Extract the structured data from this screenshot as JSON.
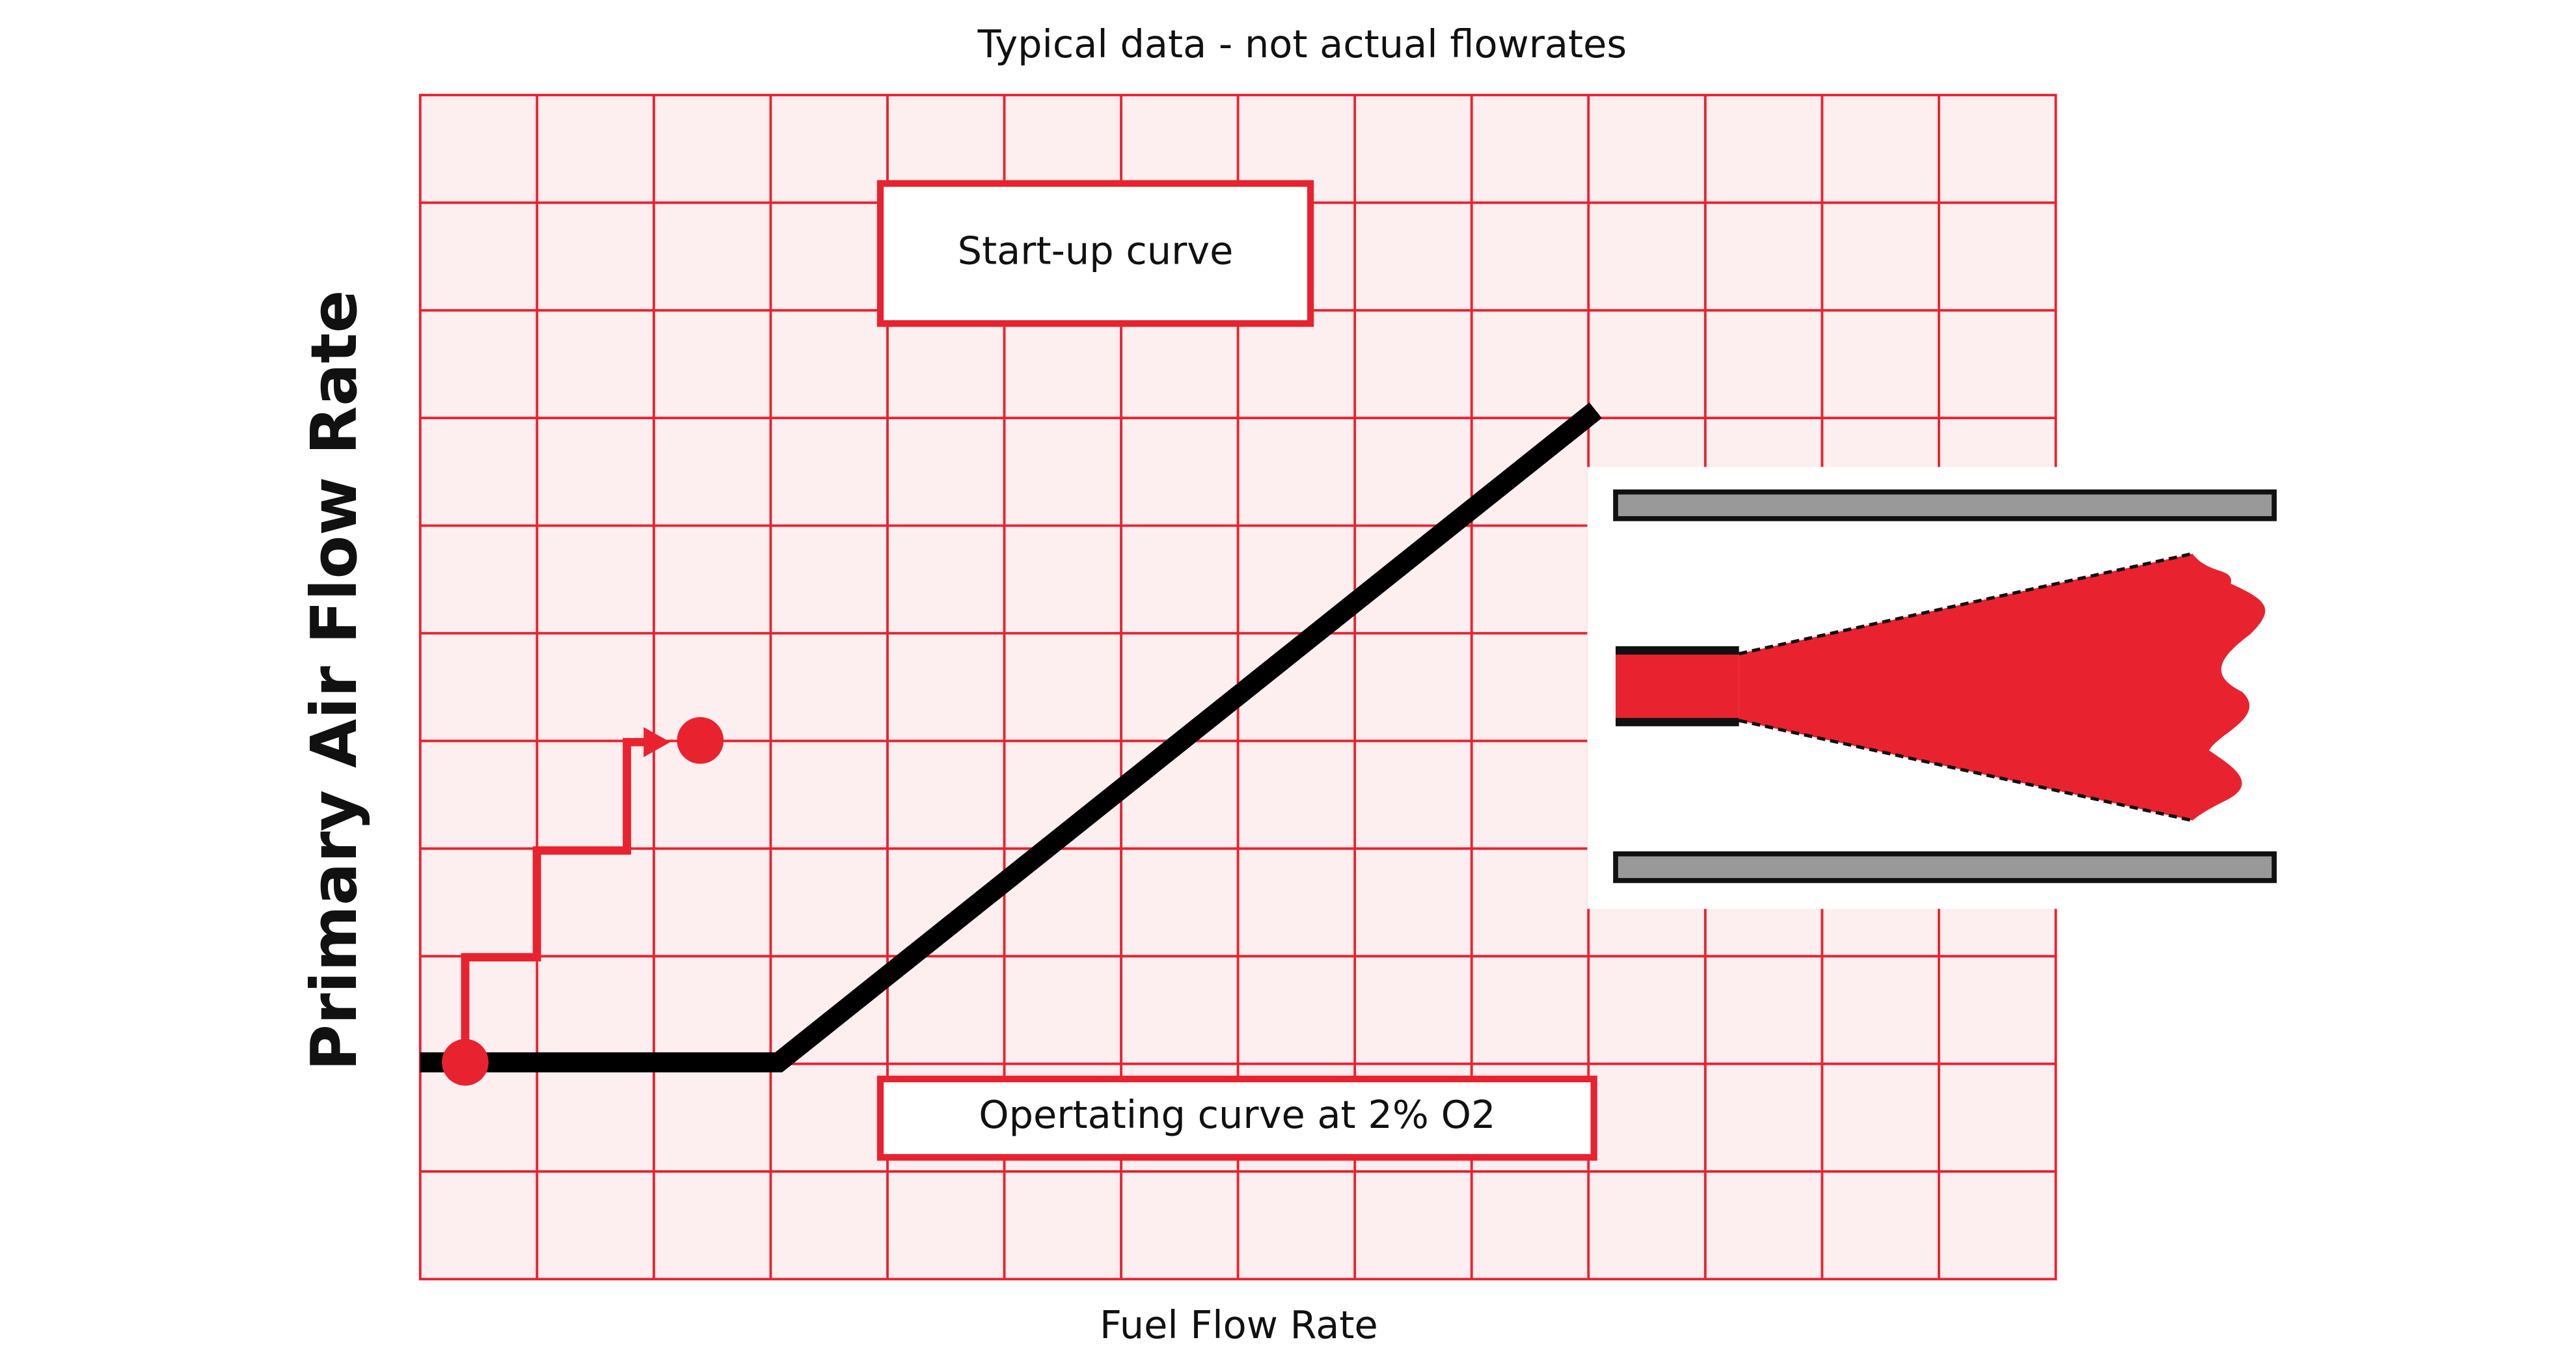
{
  "title": "Typical data - not actual flowrates",
  "x_axis_label": "Fuel Flow Rate",
  "y_axis_label": "Primary Air Flow Rate",
  "labels": [
    "Start-up curve",
    "Opertating curve at 2% O2"
  ]
}
